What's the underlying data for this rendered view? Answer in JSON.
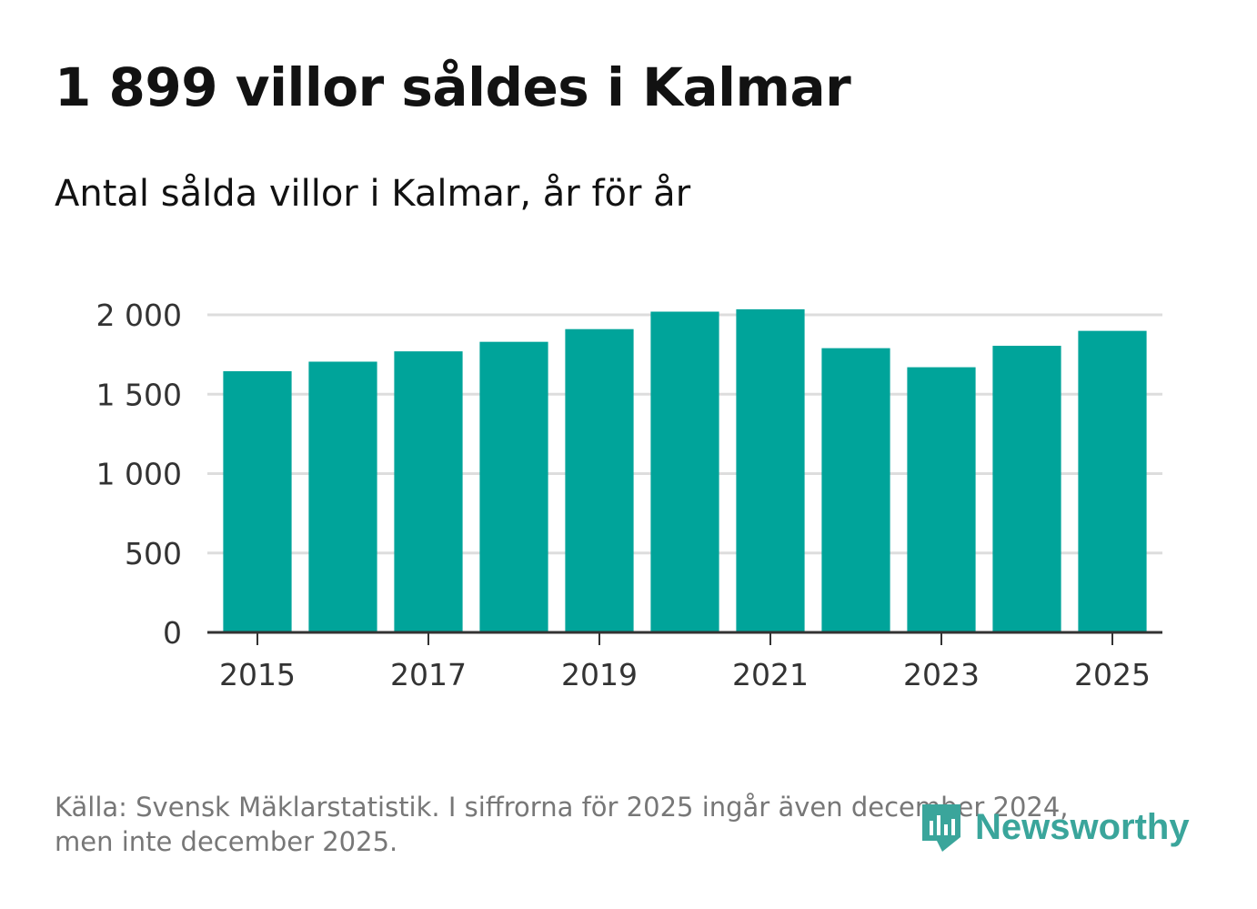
{
  "header": {
    "title": "1 899 villor såldes i Kalmar",
    "subtitle": "Antal sålda villor i Kalmar, år för år"
  },
  "footer": {
    "source_line1": "Källa: Svensk Mäklarstatistik. I siffrorna för 2025 ingår även december 2024,",
    "source_line2": "men inte december 2025."
  },
  "logo": {
    "text": "Newsworthy",
    "icon": "newsworthy-logo-icon"
  },
  "colors": {
    "bar": "#00a49a",
    "grid": "#dddddd",
    "axis": "#333333",
    "logo": "#3aa59b"
  },
  "chart_data": {
    "type": "bar",
    "title": "Antal sålda villor i Kalmar, år för år",
    "xlabel": "",
    "ylabel": "",
    "categories": [
      "2015",
      "2016",
      "2017",
      "2018",
      "2019",
      "2020",
      "2021",
      "2022",
      "2023",
      "2024",
      "2025"
    ],
    "values": [
      1645,
      1705,
      1770,
      1830,
      1910,
      2020,
      2035,
      1790,
      1670,
      1805,
      1899
    ],
    "x_tick_labels": [
      "2015",
      "2017",
      "2019",
      "2021",
      "2023",
      "2025"
    ],
    "y_ticks": [
      0,
      500,
      1000,
      1500,
      2000
    ],
    "y_tick_labels": [
      "0",
      "500",
      "1 000",
      "1 500",
      "2 000"
    ],
    "ylim": [
      0,
      2100
    ],
    "grid": true
  }
}
